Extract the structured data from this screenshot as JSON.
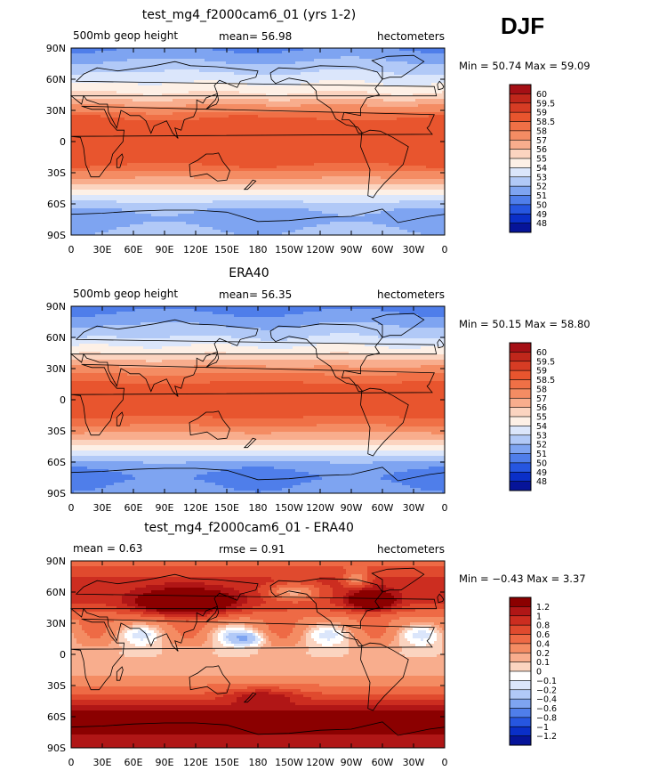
{
  "season": "DJF",
  "chart_data": [
    {
      "type": "heatmap",
      "title": "test_mg4_f2000cam6_01 (yrs 1-2)",
      "left_label": "500mb geop height",
      "center_label": "mean=  56.98",
      "right_label": "hectometers",
      "stats": "Min =  50.74 Max =  59.09",
      "x_ticks": [
        "0",
        "30E",
        "60E",
        "90E",
        "120E",
        "150E",
        "180",
        "150W",
        "120W",
        "90W",
        "60W",
        "30W",
        "0"
      ],
      "y_ticks": [
        "90N",
        "60N",
        "30N",
        "0",
        "30S",
        "60S",
        "90S"
      ],
      "colorbar_labels": [
        "60",
        "59.5",
        "59",
        "58.5",
        "58",
        "57",
        "56",
        "55",
        "54",
        "53",
        "52",
        "51",
        "50",
        "49",
        "48"
      ],
      "colorbar_colors": [
        "#a50f15",
        "#c0271b",
        "#d63c24",
        "#e8552e",
        "#f07046",
        "#f48c63",
        "#f8ad8d",
        "#fbd4c0",
        "#fdf0e6",
        "#dbe6fb",
        "#b1c9f7",
        "#7ea4f1",
        "#4f7eea",
        "#2656e0",
        "#0a2fc8",
        "#061499"
      ],
      "field": {
        "kind": "absolute",
        "lat_profile": [
          [
            90,
            50.9
          ],
          [
            75,
            52.2
          ],
          [
            60,
            53.6
          ],
          [
            45,
            55.2
          ],
          [
            35,
            57.0
          ],
          [
            25,
            58.4
          ],
          [
            15,
            58.8
          ],
          [
            0,
            58.9
          ],
          [
            -15,
            58.8
          ],
          [
            -25,
            58.4
          ],
          [
            -35,
            57.0
          ],
          [
            -45,
            55.2
          ],
          [
            -55,
            53.4
          ],
          [
            -65,
            52.0
          ],
          [
            -75,
            51.6
          ],
          [
            -90,
            52.3
          ]
        ]
      }
    },
    {
      "type": "heatmap",
      "title": "ERA40",
      "left_label": "500mb geop height",
      "center_label": "mean=  56.35",
      "right_label": "hectometers",
      "stats": "Min =  50.15 Max =  58.80",
      "x_ticks": [
        "0",
        "30E",
        "60E",
        "90E",
        "120E",
        "150E",
        "180",
        "150W",
        "120W",
        "90W",
        "60W",
        "30W",
        "0"
      ],
      "y_ticks": [
        "90N",
        "60N",
        "30N",
        "0",
        "30S",
        "60S",
        "90S"
      ],
      "colorbar_labels": [
        "60",
        "59.5",
        "59",
        "58.5",
        "58",
        "57",
        "56",
        "55",
        "54",
        "53",
        "52",
        "51",
        "50",
        "49",
        "48"
      ],
      "colorbar_colors": [
        "#a50f15",
        "#c0271b",
        "#d63c24",
        "#e8552e",
        "#f07046",
        "#f48c63",
        "#f8ad8d",
        "#fbd4c0",
        "#fdf0e6",
        "#dbe6fb",
        "#b1c9f7",
        "#7ea4f1",
        "#4f7eea",
        "#2656e0",
        "#0a2fc8",
        "#061499"
      ],
      "field": {
        "kind": "absolute",
        "lat_profile": [
          [
            90,
            50.5
          ],
          [
            75,
            51.7
          ],
          [
            60,
            53.0
          ],
          [
            45,
            54.8
          ],
          [
            35,
            56.6
          ],
          [
            25,
            58.0
          ],
          [
            15,
            58.6
          ],
          [
            0,
            58.7
          ],
          [
            -15,
            58.6
          ],
          [
            -25,
            58.0
          ],
          [
            -35,
            56.5
          ],
          [
            -45,
            54.6
          ],
          [
            -55,
            52.7
          ],
          [
            -65,
            51.2
          ],
          [
            -75,
            50.8
          ],
          [
            -90,
            51.4
          ]
        ]
      }
    },
    {
      "type": "heatmap",
      "title": "test_mg4_f2000cam6_01 - ERA40",
      "left_label": "mean =    0.63",
      "center_label": "rmse =    0.91",
      "right_label": "hectometers",
      "stats": "Min =  −0.43 Max =    3.37",
      "x_ticks": [
        "0",
        "30E",
        "60E",
        "90E",
        "120E",
        "150E",
        "180",
        "150W",
        "120W",
        "90W",
        "60W",
        "30W",
        "0"
      ],
      "y_ticks": [
        "90N",
        "60N",
        "30N",
        "0",
        "30S",
        "60S",
        "90S"
      ],
      "colorbar_labels": [
        "1.2",
        "1",
        "0.8",
        "0.6",
        "0.4",
        "0.2",
        "0.1",
        "0",
        "−0.1",
        "−0.2",
        "−0.4",
        "−0.6",
        "−0.8",
        "−1",
        "−1.2"
      ],
      "colorbar_colors": [
        "#8b0000",
        "#b01616",
        "#cc2d20",
        "#e04a2e",
        "#ee6a45",
        "#f48c63",
        "#f8ad8d",
        "#fbd4c0",
        "#ffffff",
        "#dbe6fb",
        "#b1c9f7",
        "#7ea4f1",
        "#4f7eea",
        "#2656e0",
        "#0a2fc8",
        "#061499"
      ],
      "field": {
        "kind": "difference",
        "lat_profile": [
          [
            90,
            0.5
          ],
          [
            70,
            0.9
          ],
          [
            50,
            0.8
          ],
          [
            35,
            0.4
          ],
          [
            20,
            0.15
          ],
          [
            0,
            0.1
          ],
          [
            -20,
            0.2
          ],
          [
            -35,
            0.5
          ],
          [
            -45,
            0.8
          ],
          [
            -55,
            1.2
          ],
          [
            -70,
            1.3
          ],
          [
            -90,
            1.0
          ]
        ]
      }
    }
  ]
}
